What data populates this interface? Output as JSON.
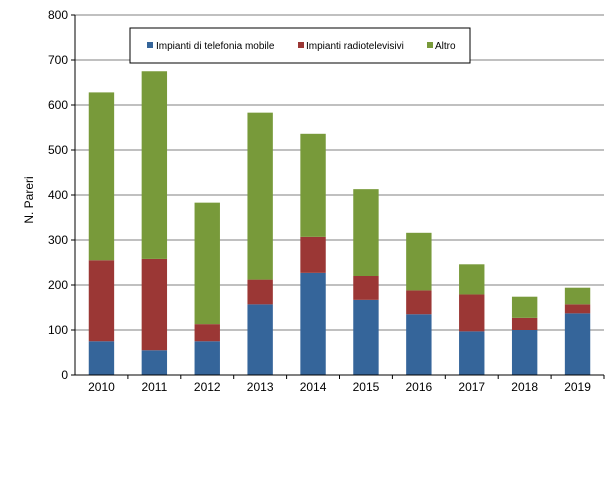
{
  "chart_data": {
    "type": "bar",
    "stacked": true,
    "title": "",
    "xlabel": "",
    "ylabel": "N. Pareri",
    "ylim": [
      0,
      800
    ],
    "yticks": [
      0,
      100,
      200,
      300,
      400,
      500,
      600,
      700,
      800
    ],
    "categories": [
      "2010",
      "2011",
      "2012",
      "2013",
      "2014",
      "2015",
      "2016",
      "2017",
      "2018",
      "2019"
    ],
    "series": [
      {
        "name": "Impianti di telefonia mobile",
        "color": "#35659A",
        "values": [
          75,
          55,
          75,
          157,
          227,
          167,
          135,
          97,
          100,
          137
        ]
      },
      {
        "name": "Impianti radiotelevisivi",
        "color": "#9B3735",
        "values": [
          180,
          203,
          38,
          55,
          80,
          53,
          53,
          82,
          27,
          20
        ]
      },
      {
        "name": "Altro",
        "color": "#789A3A",
        "values": [
          373,
          417,
          270,
          371,
          229,
          193,
          128,
          67,
          47,
          37
        ]
      }
    ],
    "legend_position": "top"
  }
}
